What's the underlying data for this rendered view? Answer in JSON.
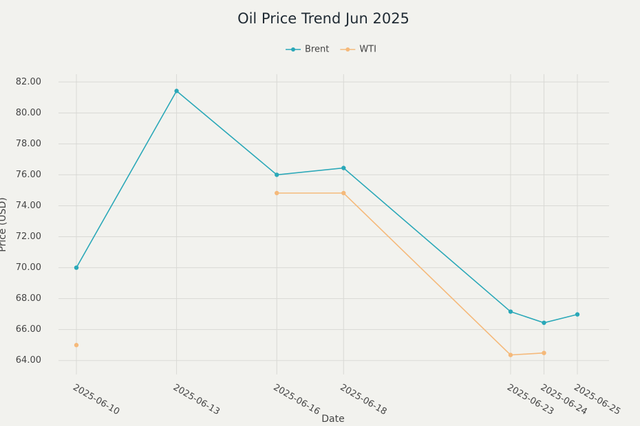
{
  "chart_data": {
    "type": "line",
    "title": "Oil Price Trend Jun 2025",
    "x_label": "Date",
    "y_label": "Price (USD)",
    "x": [
      "2025-06-10",
      "2025-06-13",
      "2025-06-16",
      "2025-06-18",
      "2025-06-23",
      "2025-06-24",
      "2025-06-25"
    ],
    "series": [
      {
        "name": "Brent",
        "color": "#2aa8b8",
        "values": [
          70.0,
          81.42,
          76.0,
          76.44,
          67.16,
          66.44,
          66.98
        ]
      },
      {
        "name": "WTI",
        "color": "#f5b97a",
        "values": [
          65.0,
          null,
          74.82,
          74.82,
          64.36,
          64.49,
          null
        ]
      }
    ],
    "ylim": [
      63.1,
      82.5
    ],
    "yticks": [
      {
        "value": 64,
        "label": "64.00"
      },
      {
        "value": 66,
        "label": "66.00"
      },
      {
        "value": 68,
        "label": "68.00"
      },
      {
        "value": 70,
        "label": "70.00"
      },
      {
        "value": 72,
        "label": "72.00"
      },
      {
        "value": 74,
        "label": "74.00"
      },
      {
        "value": 76,
        "label": "76.00"
      },
      {
        "value": 78,
        "label": "78.00"
      },
      {
        "value": 80,
        "label": "80.00"
      },
      {
        "value": 82,
        "label": "82.00"
      }
    ],
    "grid": true,
    "legend": "top"
  }
}
